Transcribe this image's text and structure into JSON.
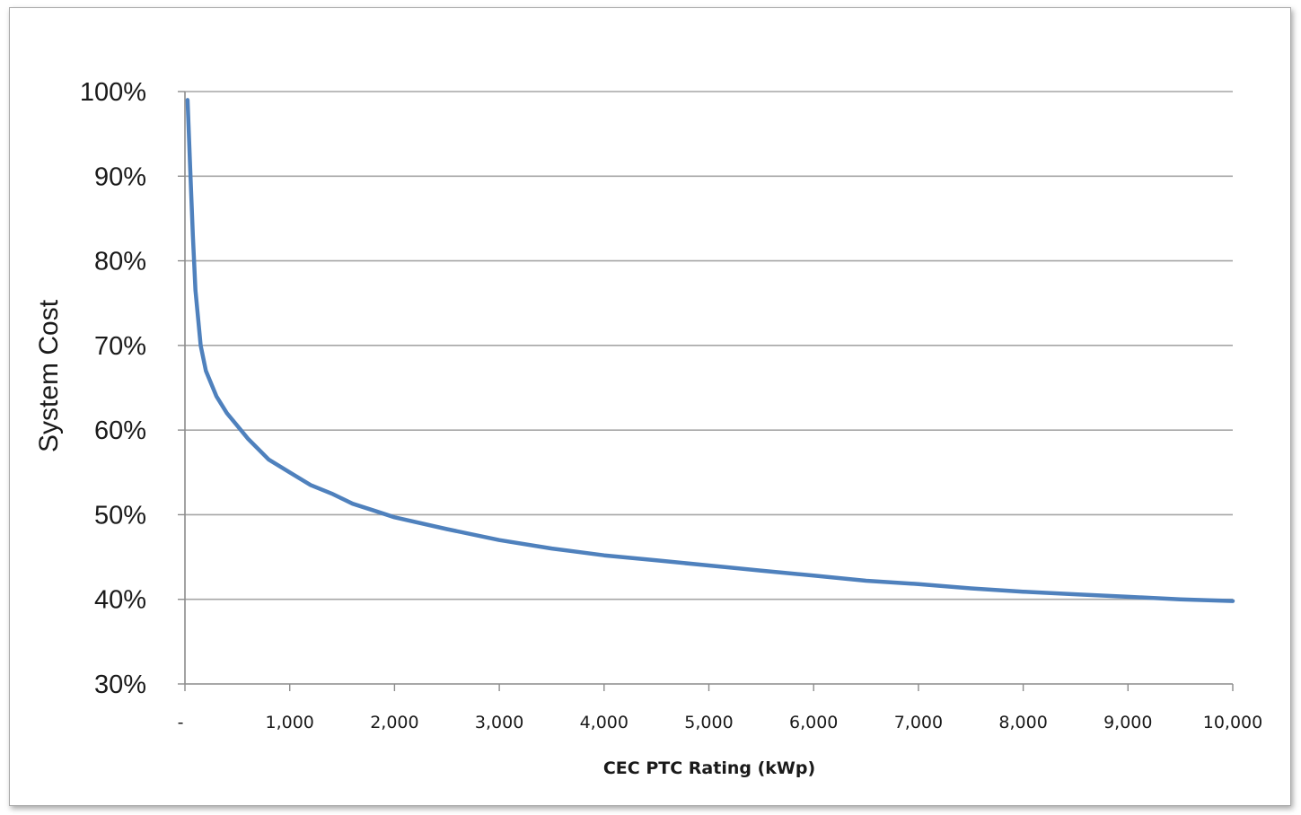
{
  "chart_data": {
    "type": "line",
    "title": "",
    "xlabel": "CEC PTC Rating  (kWp)",
    "ylabel": "System Cost",
    "xlim": [
      0,
      10000
    ],
    "ylim": [
      0.3,
      1.0
    ],
    "x_ticks": [
      0,
      1000,
      2000,
      3000,
      4000,
      5000,
      6000,
      7000,
      8000,
      9000,
      10000
    ],
    "x_tick_labels": [
      "-",
      "1,000",
      "2,000",
      "3,000",
      "4,000",
      "5,000",
      "6,000",
      "7,000",
      "8,000",
      "9,000",
      "10,000"
    ],
    "y_ticks": [
      0.3,
      0.4,
      0.5,
      0.6,
      0.7,
      0.8,
      0.9,
      1.0
    ],
    "y_tick_labels": [
      "30%",
      "40%",
      "50%",
      "60%",
      "70%",
      "80%",
      "90%",
      "100%"
    ],
    "grid": "horizontal",
    "legend": "none",
    "line_color": "#4f81bd",
    "grid_color": "#a6a6a6",
    "series": [
      {
        "name": "",
        "x": [
          25,
          50,
          75,
          100,
          150,
          200,
          300,
          400,
          500,
          600,
          800,
          1000,
          1200,
          1400,
          1600,
          1800,
          2000,
          2500,
          3000,
          3500,
          4000,
          4500,
          5000,
          5500,
          6000,
          6500,
          7000,
          7500,
          8000,
          8500,
          9000,
          9500,
          10000
        ],
        "values": [
          0.99,
          0.91,
          0.83,
          0.765,
          0.7,
          0.67,
          0.64,
          0.62,
          0.605,
          0.59,
          0.565,
          0.55,
          0.535,
          0.525,
          0.513,
          0.505,
          0.497,
          0.483,
          0.47,
          0.46,
          0.452,
          0.446,
          0.44,
          0.434,
          0.428,
          0.422,
          0.418,
          0.413,
          0.409,
          0.406,
          0.403,
          0.4,
          0.398
        ]
      }
    ]
  }
}
